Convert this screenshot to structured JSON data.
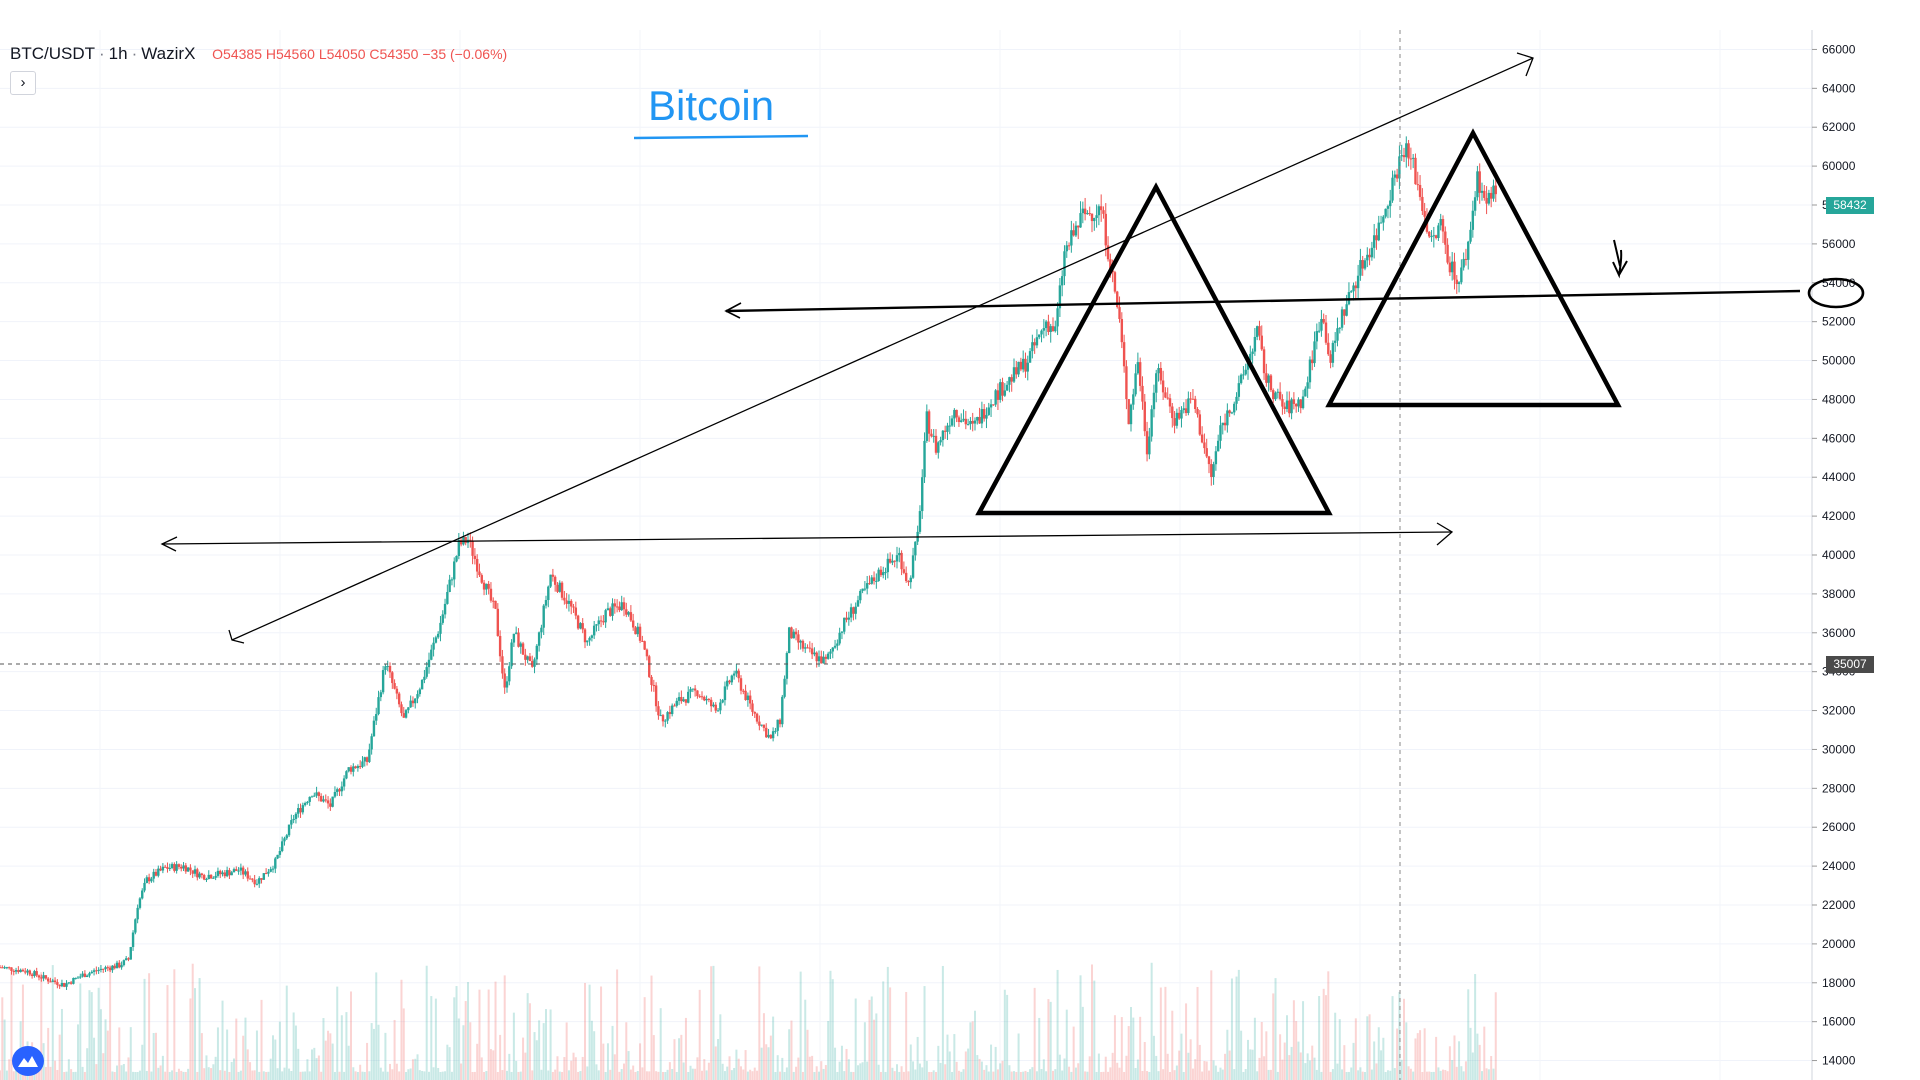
{
  "chart": {
    "symbol": "BTC/USDT",
    "interval": "1h",
    "exchange": "WazirX",
    "open": "O54385",
    "high": "H54560",
    "low": "L54050",
    "close": "C54350",
    "change": "−35 (−0.06%)",
    "collapse_icon": "chevron-right-icon",
    "logo_icon": "tradingview-logo-icon"
  },
  "annotation": {
    "title": "Bitcoin",
    "marked_level": "54000",
    "colors": {
      "title": "#2196f3",
      "pen": "#000000"
    }
  },
  "price_axis": {
    "labels": [
      "66000",
      "64000",
      "62000",
      "60000",
      "58000",
      "56000",
      "54000",
      "52000",
      "50000",
      "48000",
      "46000",
      "44000",
      "42000",
      "40000",
      "38000",
      "36000",
      "34000",
      "32000",
      "30000",
      "28000",
      "26000",
      "24000",
      "22000",
      "20000",
      "18000",
      "16000",
      "14000"
    ],
    "last_price_tag": "58432",
    "crosshair_price_tag": "35007"
  },
  "colors": {
    "up": "#26a69a",
    "down": "#ef5350",
    "axis_text": "#131722"
  },
  "chart_data": {
    "type": "candlestick",
    "title": "",
    "series": [
      {
        "name": "",
        "close_path": [
          [
            0,
            18800
          ],
          [
            3,
            18600
          ],
          [
            5,
            18200
          ],
          [
            7,
            17900
          ],
          [
            9,
            18400
          ],
          [
            11,
            18700
          ],
          [
            13,
            18900
          ],
          [
            14,
            19200
          ],
          [
            15,
            22000
          ],
          [
            16,
            23300
          ],
          [
            18,
            23900
          ],
          [
            20,
            24000
          ],
          [
            22,
            23500
          ],
          [
            24,
            23600
          ],
          [
            26,
            23800
          ],
          [
            28,
            23200
          ],
          [
            30,
            24200
          ],
          [
            32,
            26500
          ],
          [
            34,
            27800
          ],
          [
            36,
            27100
          ],
          [
            38,
            29000
          ],
          [
            40,
            29400
          ],
          [
            42,
            34500
          ],
          [
            43,
            33000
          ],
          [
            44,
            31500
          ],
          [
            46,
            33500
          ],
          [
            48,
            36500
          ],
          [
            50,
            40500
          ],
          [
            51,
            40800
          ],
          [
            52,
            39500
          ],
          [
            54,
            37000
          ],
          [
            55,
            33000
          ],
          [
            56,
            36000
          ],
          [
            58,
            34000
          ],
          [
            60,
            39000
          ],
          [
            62,
            37500
          ],
          [
            64,
            35500
          ],
          [
            66,
            37000
          ],
          [
            68,
            37500
          ],
          [
            70,
            35500
          ],
          [
            71,
            33500
          ],
          [
            72,
            31500
          ],
          [
            74,
            32500
          ],
          [
            76,
            33000
          ],
          [
            78,
            32000
          ],
          [
            80,
            34000
          ],
          [
            82,
            32000
          ],
          [
            84,
            30500
          ],
          [
            85,
            31500
          ],
          [
            86,
            36000
          ],
          [
            88,
            35000
          ],
          [
            90,
            34500
          ],
          [
            92,
            36500
          ],
          [
            94,
            38000
          ],
          [
            96,
            39200
          ],
          [
            98,
            40000
          ],
          [
            99,
            38500
          ],
          [
            100,
            41000
          ],
          [
            101,
            47000
          ],
          [
            102,
            45500
          ],
          [
            104,
            47500
          ],
          [
            106,
            46500
          ],
          [
            108,
            48000
          ],
          [
            110,
            49000
          ],
          [
            112,
            50000
          ],
          [
            114,
            52000
          ],
          [
            115,
            51500
          ],
          [
            116,
            55500
          ],
          [
            118,
            57500
          ],
          [
            120,
            57800
          ],
          [
            121,
            55000
          ],
          [
            122,
            52000
          ],
          [
            123,
            47000
          ],
          [
            124,
            50000
          ],
          [
            125,
            45500
          ],
          [
            126,
            49500
          ],
          [
            128,
            47000
          ],
          [
            130,
            48000
          ],
          [
            132,
            44000
          ],
          [
            133,
            46500
          ],
          [
            135,
            48500
          ],
          [
            137,
            51500
          ],
          [
            138,
            49000
          ],
          [
            140,
            47500
          ],
          [
            142,
            48000
          ],
          [
            144,
            52500
          ],
          [
            145,
            50000
          ],
          [
            146,
            52000
          ],
          [
            148,
            54500
          ],
          [
            150,
            56500
          ],
          [
            152,
            59500
          ],
          [
            153,
            61000
          ],
          [
            154,
            60000
          ],
          [
            156,
            56000
          ],
          [
            157,
            57000
          ],
          [
            158,
            55000
          ],
          [
            159,
            54000
          ],
          [
            160,
            56000
          ],
          [
            161,
            59500
          ],
          [
            162,
            58000
          ],
          [
            163,
            59000
          ]
        ]
      }
    ],
    "x_range": [
      0,
      170
    ],
    "y_range": [
      13000,
      67000
    ],
    "y_ticks": [
      66000,
      64000,
      62000,
      60000,
      58000,
      56000,
      54000,
      52000,
      50000,
      48000,
      46000,
      44000,
      42000,
      40000,
      38000,
      36000,
      34000,
      32000,
      30000,
      28000,
      26000,
      24000,
      22000,
      20000,
      18000,
      16000,
      14000
    ],
    "volume": true,
    "grid": true
  }
}
